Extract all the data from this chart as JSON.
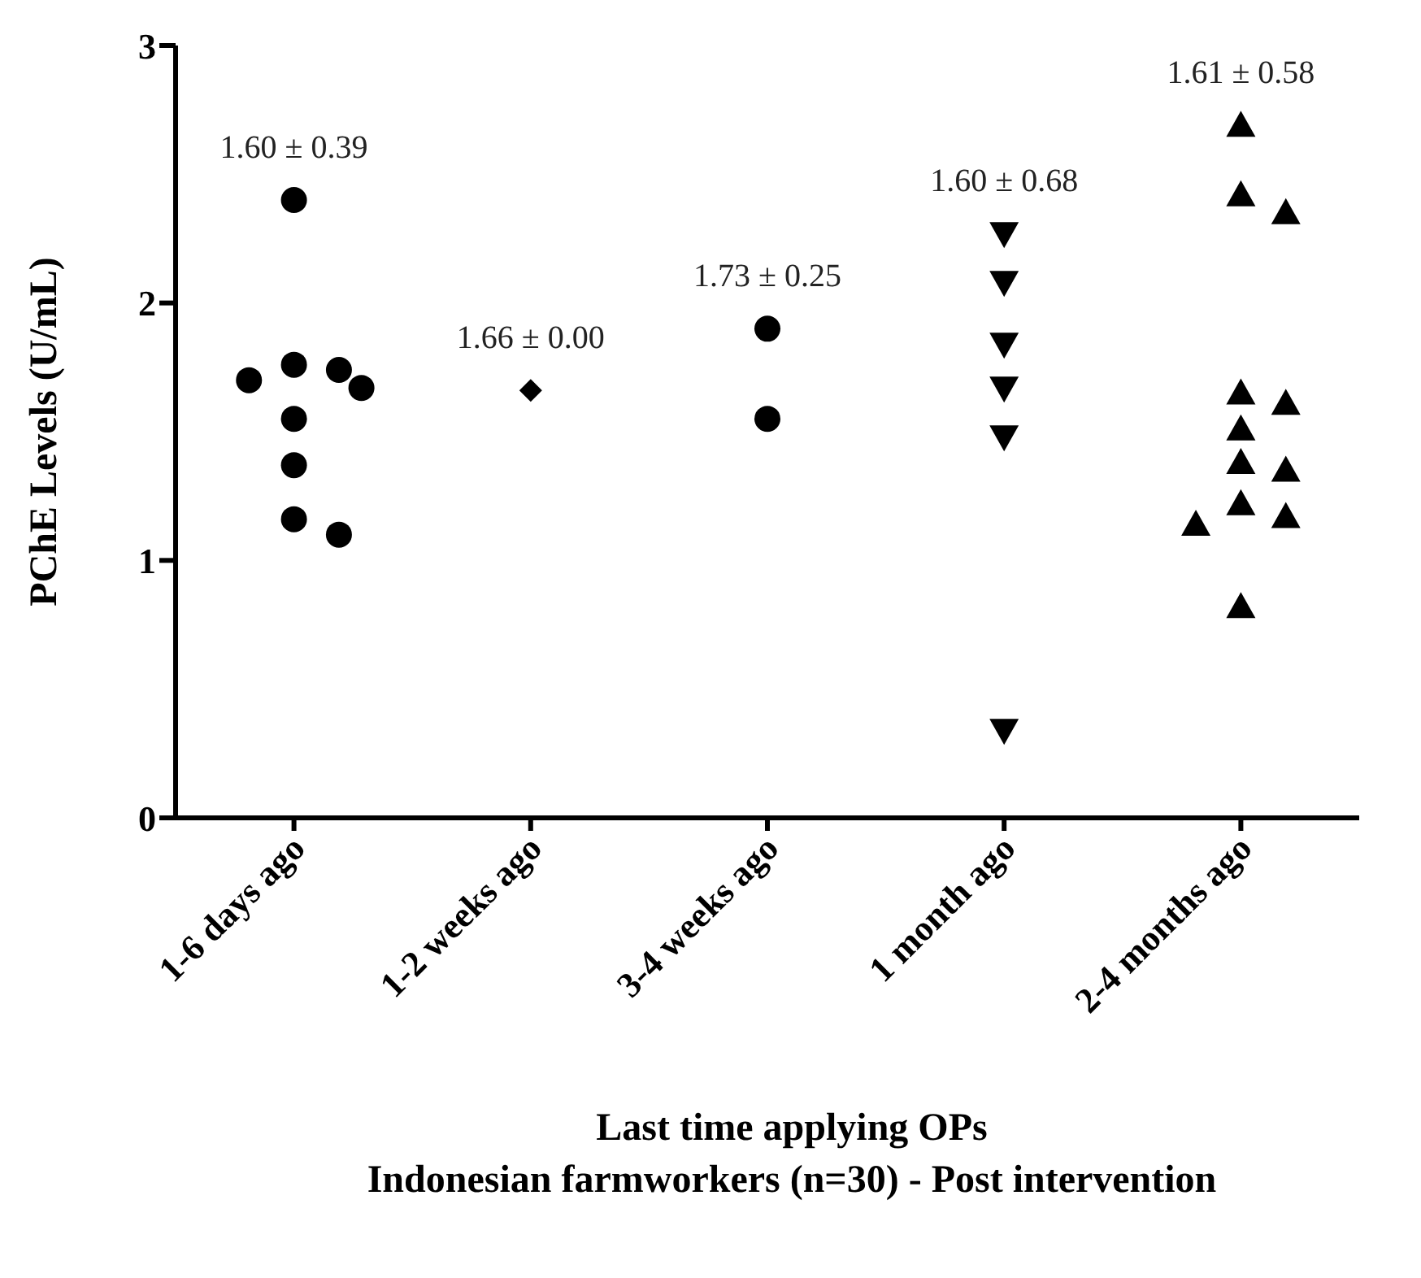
{
  "chart_data": {
    "type": "scatter",
    "xlabel": "Last time applying OPs",
    "subtitle": "Indonesian farmworkers (n=30) - Post intervention",
    "ylabel": "PChE Levels (U/mL)",
    "categories": [
      "1-6 days ago",
      "1-2 weeks ago",
      "3-4 weeks ago",
      "1 month ago",
      "2-4 months ago"
    ],
    "ylim": [
      0,
      3
    ],
    "yticks": [
      0,
      1,
      2,
      3
    ],
    "grid": false,
    "legend": false,
    "series": [
      {
        "color": "#000000",
        "marker": "circle",
        "x": [
          "1-6 days ago",
          "1-6 days ago",
          "1-6 days ago",
          "1-6 days ago",
          "1-6 days ago",
          "1-6 days ago",
          "1-6 days ago",
          "1-6 days ago",
          "1-6 days ago"
        ],
        "values": [
          2.4,
          1.76,
          1.74,
          1.7,
          1.67,
          1.55,
          1.37,
          1.16,
          1.1
        ]
      },
      {
        "color": "#000000",
        "marker": "diamond",
        "x": [
          "1-2 weeks ago"
        ],
        "values": [
          1.66
        ]
      },
      {
        "color": "#000000",
        "marker": "circle",
        "x": [
          "3-4 weeks ago",
          "3-4 weeks ago"
        ],
        "values": [
          1.9,
          1.55
        ]
      },
      {
        "color": "#000000",
        "marker": "triangle-down",
        "x": [
          "1 month ago",
          "1 month ago",
          "1 month ago",
          "1 month ago",
          "1 month ago",
          "1 month ago"
        ],
        "values": [
          2.27,
          2.08,
          1.84,
          1.67,
          1.48,
          0.34
        ]
      },
      {
        "color": "#000000",
        "marker": "triangle",
        "x": [
          "2-4 months ago",
          "2-4 months ago",
          "2-4 months ago",
          "2-4 months ago",
          "2-4 months ago",
          "2-4 months ago",
          "2-4 months ago",
          "2-4 months ago",
          "2-4 months ago",
          "2-4 months ago",
          "2-4 months ago",
          "2-4 months ago"
        ],
        "values": [
          2.69,
          2.42,
          2.35,
          1.65,
          1.61,
          1.51,
          1.38,
          1.35,
          1.22,
          1.17,
          1.14,
          0.82
        ]
      }
    ],
    "annotations": [
      "1.60 ± 0.39",
      "1.66 ± 0.00",
      "1.73 ± 0.25",
      "1.60 ± 0.68",
      "1.61 ± 0.58"
    ]
  }
}
